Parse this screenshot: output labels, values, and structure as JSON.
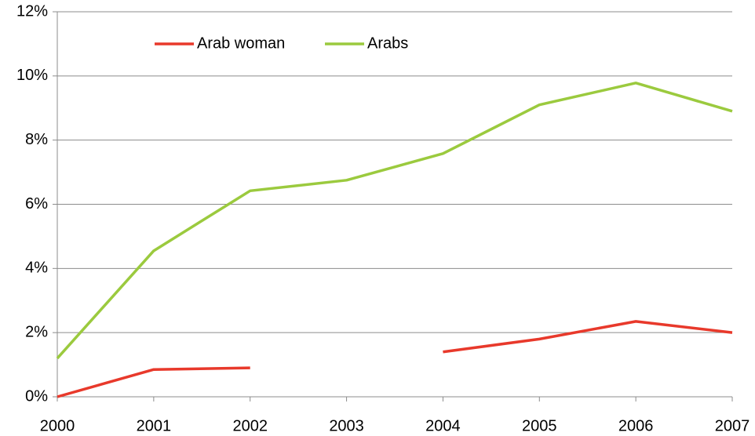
{
  "chart_data": {
    "type": "line",
    "x": [
      2000,
      2001,
      2002,
      2003,
      2004,
      2005,
      2006,
      2007
    ],
    "series": [
      {
        "name": "Arab woman",
        "color": "#e8392b",
        "values": [
          0,
          0.85,
          0.9,
          null,
          1.4,
          1.8,
          2.35,
          2.0
        ]
      },
      {
        "name": "Arabs",
        "color": "#9bca3e",
        "values": [
          1.2,
          4.55,
          6.42,
          6.75,
          7.58,
          9.1,
          9.78,
          8.9
        ]
      }
    ],
    "xlim": [
      2000,
      2007
    ],
    "xticks": [
      2000,
      2001,
      2002,
      2003,
      2004,
      2005,
      2006,
      2007
    ],
    "ylim": [
      0,
      12
    ],
    "yticks": [
      {
        "value": 0,
        "label": "0%"
      },
      {
        "value": 2,
        "label": "2%"
      },
      {
        "value": 4,
        "label": "4%"
      },
      {
        "value": 6,
        "label": "6%"
      },
      {
        "value": 8,
        "label": "8%"
      },
      {
        "value": 10,
        "label": "10%"
      },
      {
        "value": 12,
        "label": "12%"
      }
    ],
    "grid": true,
    "legend": "top"
  }
}
